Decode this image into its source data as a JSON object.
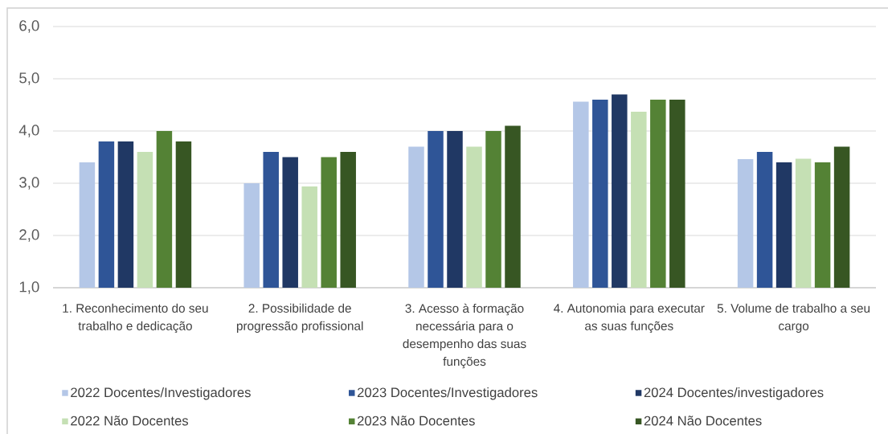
{
  "chart_data": {
    "type": "bar",
    "categories": [
      "1. Reconhecimento do seu trabalho e dedicação",
      "2. Possibilidade de progressão profissional",
      "3. Acesso à formação necessária para o desempenho das suas funções",
      "4. Autonomia para executar as suas funções",
      "5. Volume de trabalho a seu cargo"
    ],
    "series": [
      {
        "name": "2022 Docentes/Investigadores",
        "color": "#b4c7e7",
        "values": [
          3.4,
          3.0,
          3.7,
          4.56,
          3.46
        ]
      },
      {
        "name": "2023 Docentes/Investigadores",
        "color": "#2f5597",
        "values": [
          3.8,
          3.6,
          4.0,
          4.6,
          3.6
        ]
      },
      {
        "name": "2024 Docentes/investigadores",
        "color": "#203864",
        "values": [
          3.8,
          3.5,
          4.0,
          4.7,
          3.4
        ]
      },
      {
        "name": "2022 Não Docentes",
        "color": "#c5e0b4",
        "values": [
          3.6,
          2.94,
          3.7,
          4.37,
          3.47
        ]
      },
      {
        "name": "2023 Não Docentes",
        "color": "#548235",
        "values": [
          4.0,
          3.5,
          4.0,
          4.6,
          3.4
        ]
      },
      {
        "name": "2024 Não Docentes",
        "color": "#375623",
        "values": [
          3.8,
          3.6,
          4.1,
          4.6,
          3.7
        ]
      }
    ],
    "ylim": [
      1,
      6
    ],
    "yticks": [
      {
        "value": 1,
        "label": "1,0"
      },
      {
        "value": 2,
        "label": "2,0"
      },
      {
        "value": 3,
        "label": "3,0"
      },
      {
        "value": 4,
        "label": "4,0"
      },
      {
        "value": 5,
        "label": "5,0"
      },
      {
        "value": 6,
        "label": "6,0"
      }
    ],
    "grid": "y",
    "legend": "bottom"
  }
}
